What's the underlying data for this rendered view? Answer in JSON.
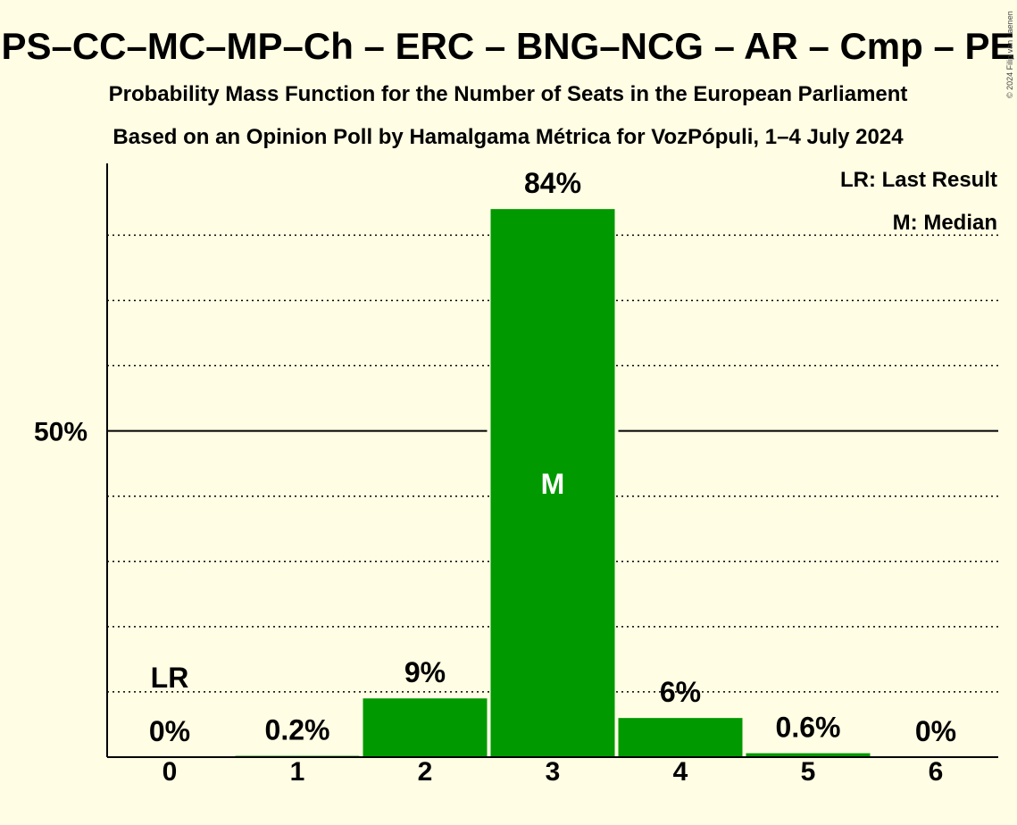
{
  "chart_data": {
    "type": "bar",
    "title": "PS–CC–MC–MP–Ch – ERC – BNG–NCG – AR – Cmp – PE",
    "subtitle_1": "Probability Mass Function for the Number of Seats in the European Parliament",
    "subtitle_2": "Based on an Opinion Poll by Hamalgama Métrica for VozPópuli, 1–4 July 2024",
    "categories": [
      "0",
      "1",
      "2",
      "3",
      "4",
      "5",
      "6"
    ],
    "values": [
      0,
      0.2,
      9,
      84,
      6,
      0.6,
      0
    ],
    "value_labels": [
      "0%",
      "0.2%",
      "9%",
      "84%",
      "6%",
      "0.6%",
      "0%"
    ],
    "ylim": [
      0,
      91
    ],
    "y_ticks": [
      {
        "value": 50,
        "label": "50%"
      }
    ],
    "dotted_grid": [
      10,
      20,
      30,
      40,
      60,
      70,
      80
    ],
    "last_result": {
      "category": "0",
      "label": "LR"
    },
    "median": {
      "category": "3",
      "label": "M"
    },
    "legend": [
      "LR: Last Result",
      "M: Median"
    ],
    "legend_position": "top-right",
    "bar_color": "#009900",
    "background_color": "#fffde4",
    "copyright": "© 2024 Filip van Laenen"
  }
}
